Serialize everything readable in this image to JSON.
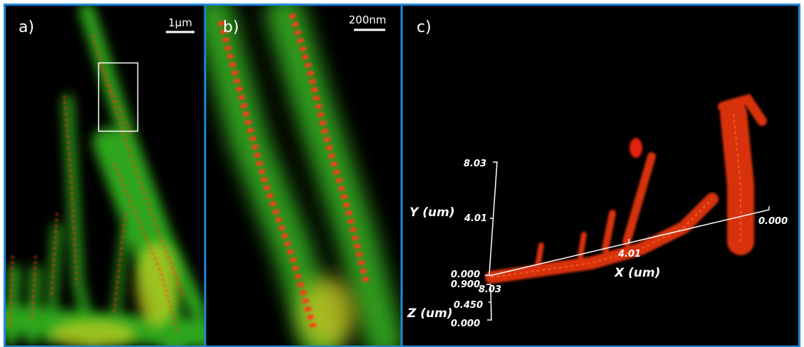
{
  "panels": [
    {
      "label": "a)",
      "scale_bar": "1μm"
    },
    {
      "label": "b)",
      "scale_bar": "200nm"
    },
    {
      "label": "c)",
      "axes": {
        "y": {
          "title": "Y (um)",
          "ticks": [
            "0.000",
            "4.01",
            "8.03"
          ]
        },
        "x": {
          "title": "X (um)",
          "ticks": [
            "8.03",
            "4.01",
            "0.000"
          ]
        },
        "z": {
          "title": "Z (um)",
          "ticks": [
            "0.000",
            "0.450",
            "0.900"
          ]
        }
      }
    }
  ]
}
